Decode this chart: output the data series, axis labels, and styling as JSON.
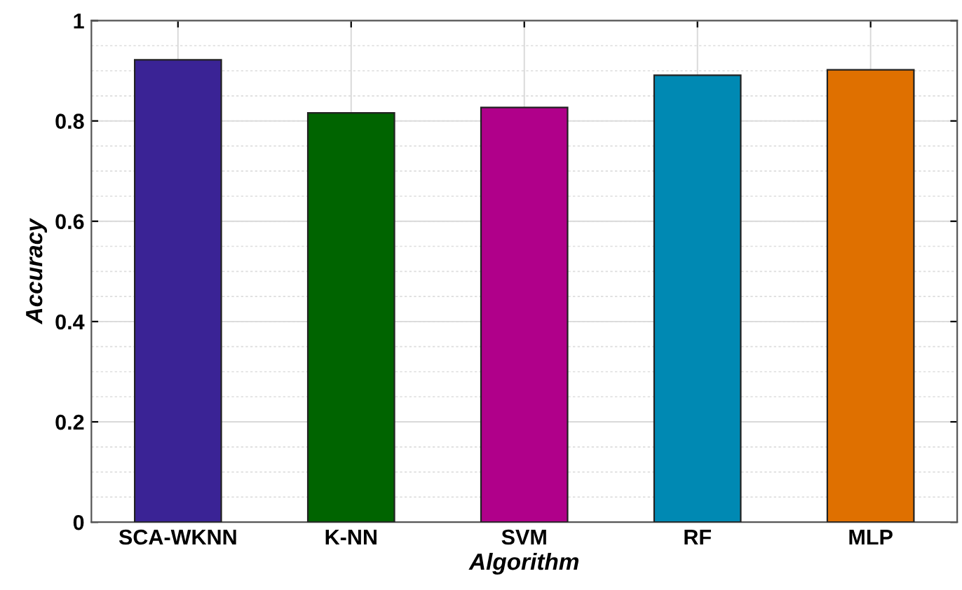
{
  "chart_data": {
    "type": "bar",
    "xlabel": "Algorithm",
    "ylabel": "Accuracy",
    "categories": [
      "SCA-WKNN",
      "K-NN",
      "SVM",
      "RF",
      "MLP"
    ],
    "values": [
      0.922,
      0.816,
      0.827,
      0.891,
      0.902
    ],
    "colors": [
      "#3a2395",
      "#006400",
      "#b0008a",
      "#0089b3",
      "#df7000"
    ],
    "ylim": [
      0,
      1
    ],
    "yticks": [
      0,
      0.2,
      0.4,
      0.6,
      0.8,
      1
    ],
    "grid": true
  }
}
